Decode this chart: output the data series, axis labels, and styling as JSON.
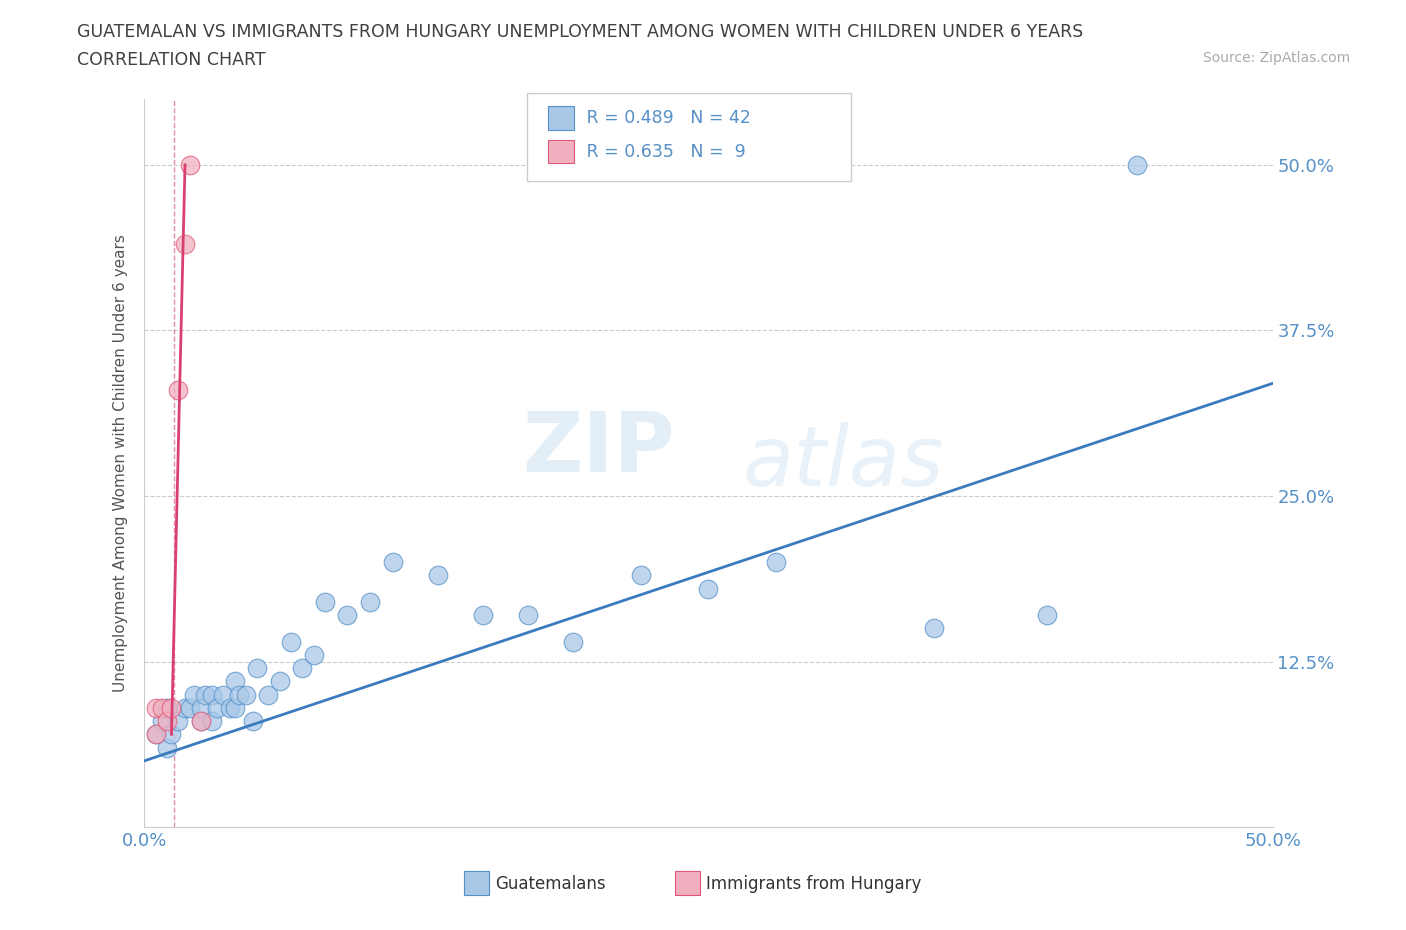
{
  "title_line1": "GUATEMALAN VS IMMIGRANTS FROM HUNGARY UNEMPLOYMENT AMONG WOMEN WITH CHILDREN UNDER 6 YEARS",
  "title_line2": "CORRELATION CHART",
  "source": "Source: ZipAtlas.com",
  "ylabel": "Unemployment Among Women with Children Under 6 years",
  "xlim": [
    0.0,
    0.5
  ],
  "ylim": [
    0.0,
    0.55
  ],
  "xticks": [
    0.0,
    0.125,
    0.25,
    0.375,
    0.5
  ],
  "xticklabels": [
    "0.0%",
    "",
    "",
    "",
    "50.0%"
  ],
  "yticks": [
    0.0,
    0.125,
    0.25,
    0.375,
    0.5
  ],
  "yticklabels": [
    "",
    "12.5%",
    "25.0%",
    "37.5%",
    "50.0%"
  ],
  "blue_color": "#a8c8e8",
  "pink_color": "#f0b0c0",
  "blue_edge_color": "#5590c8",
  "pink_edge_color": "#e05878",
  "blue_line_color": "#3a7abf",
  "pink_line_color": "#d94070",
  "watermark_zip": "ZIP",
  "watermark_atlas": "atlas",
  "legend_r_blue": "R = 0.489",
  "legend_n_blue": "N = 42",
  "legend_r_pink": "R = 0.635",
  "legend_n_pink": "N =  9",
  "blue_scatter_x": [
    0.005,
    0.008,
    0.01,
    0.01,
    0.012,
    0.015,
    0.018,
    0.02,
    0.022,
    0.025,
    0.025,
    0.027,
    0.03,
    0.03,
    0.032,
    0.035,
    0.038,
    0.04,
    0.04,
    0.042,
    0.045,
    0.048,
    0.05,
    0.055,
    0.06,
    0.065,
    0.07,
    0.075,
    0.08,
    0.09,
    0.1,
    0.11,
    0.13,
    0.15,
    0.17,
    0.19,
    0.22,
    0.25,
    0.28,
    0.35,
    0.4,
    0.44
  ],
  "blue_scatter_y": [
    0.07,
    0.08,
    0.06,
    0.09,
    0.07,
    0.08,
    0.09,
    0.09,
    0.1,
    0.08,
    0.09,
    0.1,
    0.08,
    0.1,
    0.09,
    0.1,
    0.09,
    0.11,
    0.09,
    0.1,
    0.1,
    0.08,
    0.12,
    0.1,
    0.11,
    0.14,
    0.12,
    0.13,
    0.17,
    0.16,
    0.17,
    0.2,
    0.19,
    0.16,
    0.16,
    0.14,
    0.19,
    0.18,
    0.2,
    0.15,
    0.16,
    0.5
  ],
  "pink_scatter_x": [
    0.005,
    0.005,
    0.008,
    0.01,
    0.012,
    0.015,
    0.018,
    0.02,
    0.025
  ],
  "pink_scatter_y": [
    0.09,
    0.07,
    0.09,
    0.08,
    0.09,
    0.33,
    0.44,
    0.5,
    0.08
  ],
  "blue_line_x0": 0.0,
  "blue_line_x1": 0.5,
  "blue_line_y0": 0.05,
  "blue_line_y1": 0.335,
  "pink_line_x0": 0.012,
  "pink_line_x1": 0.018,
  "pink_line_y0": 0.07,
  "pink_line_y1": 0.5,
  "pink_vline_x": 0.013,
  "background_color": "#ffffff",
  "grid_color": "#cccccc",
  "title_color": "#404040",
  "tick_color": "#5590c8"
}
